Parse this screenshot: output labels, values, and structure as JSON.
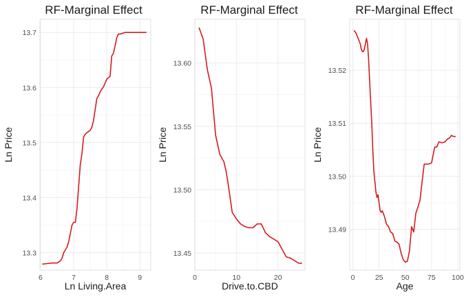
{
  "chart_data": [
    {
      "type": "line",
      "title": "RF-Marginal Effect",
      "xlabel": "Ln Living.Area",
      "ylabel": "Ln Price",
      "xlim": [
        5.98,
        9.33
      ],
      "ylim": [
        13.268,
        13.724
      ],
      "x_ticks": [
        6,
        7,
        8,
        9
      ],
      "x_tick_labels": [
        "6",
        "7",
        "8",
        "9"
      ],
      "y_ticks": [
        13.3,
        13.4,
        13.5,
        13.6,
        13.7
      ],
      "y_tick_labels": [
        "13.3",
        "13.4",
        "13.5",
        "13.6",
        "13.7"
      ],
      "series": [
        {
          "name": "RF marginal effect",
          "color": "#d7191c",
          "x": [
            6.05,
            6.2,
            6.35,
            6.5,
            6.6,
            6.65,
            6.7,
            6.8,
            6.85,
            6.9,
            6.95,
            7.0,
            7.05,
            7.1,
            7.15,
            7.2,
            7.25,
            7.3,
            7.35,
            7.4,
            7.45,
            7.5,
            7.55,
            7.6,
            7.65,
            7.7,
            7.75,
            7.8,
            7.85,
            7.9,
            7.95,
            8.0,
            8.05,
            8.1,
            8.15,
            8.2,
            8.25,
            8.3,
            8.35,
            8.4,
            8.45,
            8.5,
            8.55,
            8.6,
            8.65,
            8.7,
            8.8,
            8.9,
            9.0,
            9.1,
            9.2
          ],
          "y": [
            13.279,
            13.28,
            13.281,
            13.281,
            13.285,
            13.29,
            13.3,
            13.31,
            13.32,
            13.335,
            13.35,
            13.355,
            13.355,
            13.38,
            13.42,
            13.46,
            13.48,
            13.51,
            13.515,
            13.518,
            13.52,
            13.522,
            13.528,
            13.54,
            13.56,
            13.58,
            13.585,
            13.592,
            13.597,
            13.601,
            13.608,
            13.615,
            13.618,
            13.62,
            13.657,
            13.662,
            13.675,
            13.69,
            13.697,
            13.697,
            13.698,
            13.699,
            13.7,
            13.7,
            13.7,
            13.7,
            13.7,
            13.7,
            13.7,
            13.7,
            13.7
          ]
        }
      ]
    },
    {
      "type": "line",
      "title": "RF-Marginal Effect",
      "xlabel": "Drive.to.CBD",
      "ylabel": "Ln Price",
      "xlim": [
        0,
        26.5
      ],
      "ylim": [
        13.4365,
        13.6345
      ],
      "x_ticks": [
        0,
        10,
        20
      ],
      "x_tick_labels": [
        "0",
        "10",
        "20"
      ],
      "y_ticks": [
        13.45,
        13.5,
        13.55,
        13.6
      ],
      "y_tick_labels": [
        "13.45",
        "13.50",
        "13.55",
        "13.60"
      ],
      "series": [
        {
          "name": "RF marginal effect",
          "color": "#d7191c",
          "x": [
            1.0,
            2.0,
            3.0,
            4.0,
            5.0,
            6.0,
            7.0,
            7.5,
            8.0,
            9.0,
            10.0,
            11.0,
            12.0,
            13.0,
            14.0,
            15.0,
            16.0,
            17.0,
            18.0,
            19.0,
            20.0,
            21.0,
            22.0,
            23.0,
            24.0,
            25.0,
            25.8
          ],
          "y": [
            13.628,
            13.619,
            13.595,
            13.58,
            13.543,
            13.528,
            13.522,
            13.515,
            13.505,
            13.482,
            13.477,
            13.473,
            13.471,
            13.47,
            13.47,
            13.473,
            13.473,
            13.466,
            13.463,
            13.461,
            13.459,
            13.453,
            13.447,
            13.446,
            13.444,
            13.442,
            13.442
          ]
        }
      ]
    },
    {
      "type": "line",
      "title": "RF-Marginal Effect",
      "xlabel": "Age",
      "ylabel": "Ln Price",
      "xlim": [
        -3,
        102
      ],
      "ylim": [
        13.4823,
        13.5296
      ],
      "x_ticks": [
        0,
        25,
        50,
        75,
        100
      ],
      "x_tick_labels": [
        "0",
        "25",
        "50",
        "75",
        "100"
      ],
      "y_ticks": [
        13.49,
        13.5,
        13.51,
        13.52
      ],
      "y_tick_labels": [
        "13.49",
        "13.50",
        "13.51",
        "13.52"
      ],
      "series": [
        {
          "name": "RF marginal effect",
          "color": "#d7191c",
          "x": [
            1,
            3,
            5,
            6,
            7,
            8,
            9,
            10,
            11,
            12,
            13,
            14,
            15,
            16,
            17,
            18,
            19,
            20,
            21,
            22,
            23,
            24,
            25,
            26,
            27,
            28,
            30,
            32,
            34,
            36,
            38,
            40,
            42,
            44,
            46,
            48,
            50,
            52,
            54,
            56,
            58,
            60,
            62,
            64,
            66,
            68,
            70,
            72,
            75,
            78,
            80,
            82,
            85,
            88,
            90,
            92,
            94,
            96,
            98
          ],
          "y": [
            13.5275,
            13.527,
            13.526,
            13.5255,
            13.525,
            13.524,
            13.5235,
            13.5235,
            13.524,
            13.525,
            13.526,
            13.525,
            13.522,
            13.518,
            13.514,
            13.51,
            13.505,
            13.501,
            13.499,
            13.497,
            13.496,
            13.4965,
            13.495,
            13.4935,
            13.4932,
            13.4935,
            13.4925,
            13.491,
            13.4905,
            13.4895,
            13.4892,
            13.4878,
            13.4876,
            13.4872,
            13.4855,
            13.4843,
            13.4838,
            13.484,
            13.486,
            13.4905,
            13.4895,
            13.493,
            13.4942,
            13.4955,
            13.499,
            13.5023,
            13.5023,
            13.5023,
            13.5025,
            13.5055,
            13.5055,
            13.5065,
            13.5063,
            13.5065,
            13.507,
            13.5072,
            13.5077,
            13.5075,
            13.5075
          ]
        }
      ]
    }
  ]
}
